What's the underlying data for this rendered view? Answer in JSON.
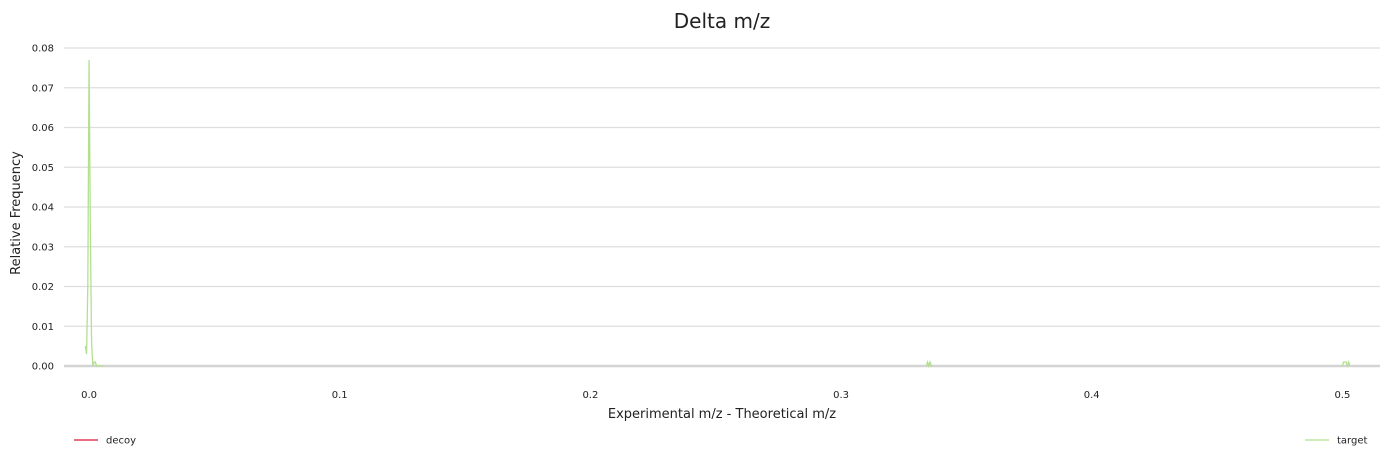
{
  "chart_data": {
    "type": "line",
    "title": "Delta m/z",
    "xlabel": "Experimental m/z - Theoretical m/z",
    "ylabel": "Relative Frequency",
    "xlim": [
      -0.01,
      0.515
    ],
    "ylim": [
      0,
      0.08
    ],
    "x_ticks": [
      0.0,
      0.1,
      0.2,
      0.3,
      0.4,
      0.5
    ],
    "x_tick_labels": [
      "0.0",
      "0.1",
      "0.2",
      "0.3",
      "0.4",
      "0.5"
    ],
    "y_ticks": [
      0,
      0.01,
      0.02,
      0.03,
      0.04,
      0.05,
      0.06,
      0.07,
      0.08
    ],
    "y_tick_labels": [
      "0.00",
      "0.01",
      "0.02",
      "0.03",
      "0.04",
      "0.05",
      "0.06",
      "0.07",
      "0.08"
    ],
    "grid": "horizontal",
    "legend_placement": "bottom",
    "series": [
      {
        "name": "decoy",
        "color": "#dc143c",
        "x": [],
        "y": []
      },
      {
        "name": "target",
        "color": "#b2e08f",
        "x": [
          -0.0015,
          -0.001,
          -0.0005,
          0.0,
          0.0005,
          0.001,
          0.0015,
          0.002,
          0.0025,
          0.003,
          0.0035,
          0.0045,
          0.0055,
          0.334,
          0.3345,
          0.335,
          0.3355,
          0.336,
          0.3365,
          0.5,
          0.5005,
          0.501,
          0.5015,
          0.502,
          0.5025,
          0.503
        ],
        "y": [
          0.005,
          0.003,
          0.02,
          0.077,
          0.035,
          0.006,
          0.0,
          0.001,
          0.001,
          0.0,
          0.0,
          0.0,
          0.0,
          0.0,
          0.001,
          0.0,
          0.001,
          0.0,
          0.0,
          0.0,
          0.001,
          0.001,
          0.001,
          0.0,
          0.001,
          0.0
        ]
      }
    ]
  }
}
